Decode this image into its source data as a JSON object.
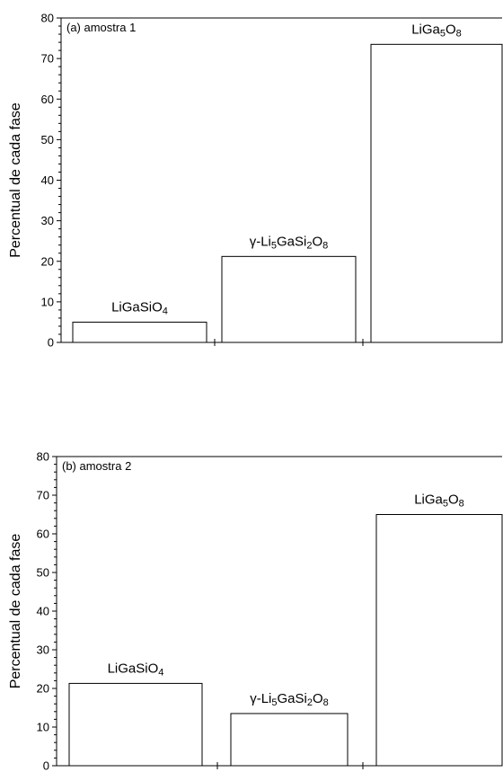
{
  "figure": {
    "panels": [
      "(a) amostra 1",
      "(b) amostra 2"
    ],
    "ylabel": "Percentual de cada fase"
  },
  "chart_data": [
    {
      "type": "bar",
      "panel_label": "(a) amostra 1",
      "ylabel": "Percentual de cada fase",
      "ylim": [
        0,
        80
      ],
      "yticks": [
        0,
        10,
        20,
        30,
        40,
        50,
        60,
        70,
        80
      ],
      "categories": [
        {
          "name": "LiGaSiO4",
          "parts": [
            {
              "t": "LiGaSiO"
            },
            {
              "t": "4",
              "sub": true
            }
          ]
        },
        {
          "name": "γ-Li5GaSi2O8",
          "parts": [
            {
              "t": "γ-Li"
            },
            {
              "t": "5",
              "sub": true
            },
            {
              "t": "GaSi"
            },
            {
              "t": "2",
              "sub": true
            },
            {
              "t": "O"
            },
            {
              "t": "8",
              "sub": true
            }
          ]
        },
        {
          "name": "LiGa5O8",
          "parts": [
            {
              "t": "LiGa"
            },
            {
              "t": "5",
              "sub": true
            },
            {
              "t": "O"
            },
            {
              "t": "8",
              "sub": true
            }
          ]
        }
      ],
      "values": [
        5,
        21.2,
        73.5
      ],
      "grid": false,
      "bar_fill": "#ffffff",
      "bar_stroke": "#000000"
    },
    {
      "type": "bar",
      "panel_label": "(b) amostra 2",
      "ylabel": "Percentual de cada fase",
      "ylim": [
        0,
        80
      ],
      "yticks": [
        0,
        10,
        20,
        30,
        40,
        50,
        60,
        70,
        80
      ],
      "categories": [
        {
          "name": "LiGaSiO4",
          "parts": [
            {
              "t": "LiGaSiO"
            },
            {
              "t": "4",
              "sub": true
            }
          ]
        },
        {
          "name": "γ-Li5GaSi2O8",
          "parts": [
            {
              "t": "γ-Li"
            },
            {
              "t": "5",
              "sub": true
            },
            {
              "t": "GaSi"
            },
            {
              "t": "2",
              "sub": true
            },
            {
              "t": "O"
            },
            {
              "t": "8",
              "sub": true
            }
          ]
        },
        {
          "name": "LiGa5O8",
          "parts": [
            {
              "t": "LiGa"
            },
            {
              "t": "5",
              "sub": true
            },
            {
              "t": "O"
            },
            {
              "t": "8",
              "sub": true
            }
          ]
        }
      ],
      "values": [
        21.3,
        13.5,
        65
      ],
      "grid": false,
      "bar_fill": "#ffffff",
      "bar_stroke": "#000000"
    }
  ]
}
